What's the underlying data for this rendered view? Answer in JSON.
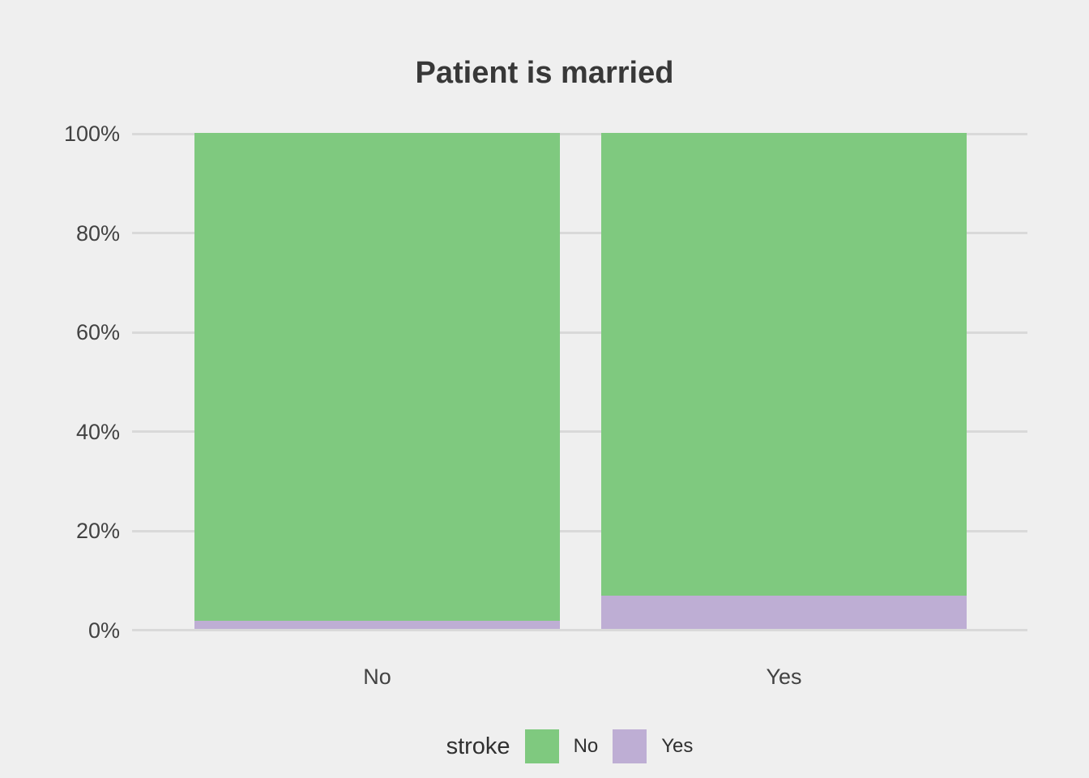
{
  "title": "Patient is married",
  "colors": {
    "background": "#EFEFEF",
    "gridline": "#D9D9D9",
    "title_text": "#383838",
    "axis_text": "#424242",
    "legend_text": "#303030",
    "series_no": "#7FC97F",
    "series_yes": "#BEAED4"
  },
  "chart_data": {
    "type": "bar",
    "variant": "stacked-percent",
    "title": "Patient is married",
    "xlabel": "",
    "ylabel": "",
    "categories": [
      "No",
      "Yes"
    ],
    "series": [
      {
        "name": "No",
        "color": "#7FC97F",
        "values": [
          98.4,
          93.3
        ]
      },
      {
        "name": "Yes",
        "color": "#BEAED4",
        "values": [
          1.6,
          6.7
        ]
      }
    ],
    "ylim": [
      0,
      100
    ],
    "yticks": [
      {
        "label": "0%",
        "value": 0
      },
      {
        "label": "20%",
        "value": 20
      },
      {
        "label": "40%",
        "value": 40
      },
      {
        "label": "60%",
        "value": 60
      },
      {
        "label": "80%",
        "value": 80
      },
      {
        "label": "100%",
        "value": 100
      }
    ],
    "grid": "horizontal",
    "legend": {
      "position": "bottom",
      "title": "stroke",
      "entries": [
        {
          "label": "No",
          "color": "#7FC97F"
        },
        {
          "label": "Yes",
          "color": "#BEAED4"
        }
      ]
    }
  }
}
